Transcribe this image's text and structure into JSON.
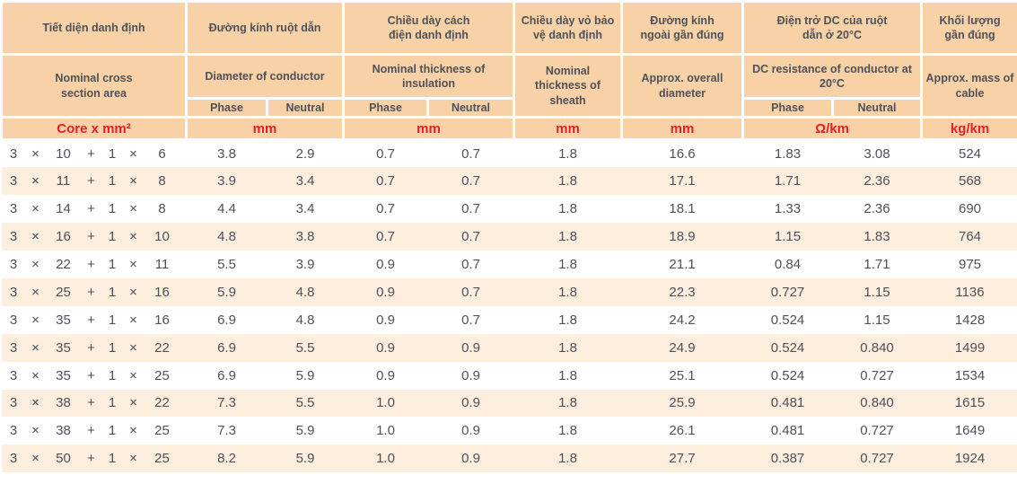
{
  "table": {
    "title_semantic": "4-core aluminium cable specification table",
    "colors": {
      "header_bg": "#f8d2a6",
      "stripe_bg": "#fdeedd",
      "unit_text": "#ea1d25",
      "body_text": "#4f5059"
    },
    "header": {
      "core": {
        "vn": "Tiết diện danh định",
        "en": "Nominal cross section area",
        "unit": "Core x mm²"
      },
      "diameter": {
        "vn": "Đường kính ruột dẫn",
        "en": "Diameter of conductor",
        "unit": "mm"
      },
      "insulation": {
        "vn": "Chiều dày cách điện danh định",
        "en": "Nominal thickness of insulation",
        "unit": "mm"
      },
      "sheath": {
        "vn": "Chiều dày vỏ bảo vệ danh định",
        "en": "Nominal thickness of sheath",
        "unit": "mm"
      },
      "overall_diameter": {
        "vn": "Đường kính ngoài gần đúng",
        "en": "Approx. overall diameter",
        "unit": "mm"
      },
      "dc_resistance": {
        "vn": "Điện trở DC của ruột dẫn ở 20°C",
        "en": "DC resistance of conductor at 20°C",
        "unit": "Ω/km"
      },
      "mass": {
        "vn": "Khối lượng gần đúng",
        "en": "Approx. mass of cable",
        "unit": "kg/km"
      }
    },
    "subheader": {
      "phase": "Phase",
      "neutral": "Neutral"
    },
    "columns": [
      "core",
      "diameter_phase",
      "diameter_neutral",
      "insulation_phase",
      "insulation_neutral",
      "sheath",
      "overall_diameter",
      "dc_phase",
      "dc_neutral",
      "mass"
    ],
    "rows": [
      [
        "3 × 10 + 1 × 6",
        "3.8",
        "2.9",
        "0.7",
        "0.7",
        "1.8",
        "16.6",
        "1.83",
        "3.08",
        "524"
      ],
      [
        "3 × 11 + 1 × 8",
        "3.9",
        "3.4",
        "0.7",
        "0.7",
        "1.8",
        "17.1",
        "1.71",
        "2.36",
        "568"
      ],
      [
        "3 × 14 + 1 × 8",
        "4.4",
        "3.4",
        "0.7",
        "0.7",
        "1.8",
        "18.1",
        "1.33",
        "2.36",
        "690"
      ],
      [
        "3 × 16 + 1 × 10",
        "4.8",
        "3.8",
        "0.7",
        "0.7",
        "1.8",
        "18.9",
        "1.15",
        "1.83",
        "764"
      ],
      [
        "3 × 22 + 1 × 11",
        "5.5",
        "3.9",
        "0.9",
        "0.7",
        "1.8",
        "21.1",
        "0.84",
        "1.71",
        "975"
      ],
      [
        "3 × 25 + 1 × 16",
        "5.9",
        "4.8",
        "0.9",
        "0.7",
        "1.8",
        "22.3",
        "0.727",
        "1.15",
        "1136"
      ],
      [
        "3 × 35 + 1 × 16",
        "6.9",
        "4.8",
        "0.9",
        "0.7",
        "1.8",
        "24.2",
        "0.524",
        "1.15",
        "1428"
      ],
      [
        "3 × 35 + 1 × 22",
        "6.9",
        "5.5",
        "0.9",
        "0.9",
        "1.8",
        "24.9",
        "0.524",
        "0.840",
        "1499"
      ],
      [
        "3 × 35 + 1 × 25",
        "6.9",
        "5.9",
        "0.9",
        "0.9",
        "1.8",
        "25.1",
        "0.524",
        "0.727",
        "1534"
      ],
      [
        "3 × 38 + 1 × 22",
        "7.3",
        "5.5",
        "1.0",
        "0.9",
        "1.8",
        "25.9",
        "0.481",
        "0.840",
        "1615"
      ],
      [
        "3 × 38 + 1 × 25",
        "7.3",
        "5.9",
        "1.0",
        "0.9",
        "1.8",
        "26.1",
        "0.481",
        "0.727",
        "1649"
      ],
      [
        "3 × 50 + 1 × 25",
        "8.2",
        "5.9",
        "1.0",
        "0.9",
        "1.8",
        "27.7",
        "0.387",
        "0.727",
        "1924"
      ]
    ]
  },
  "chart_data": {
    "type": "table",
    "title": "Cable specification table (Vietnamese/English)",
    "categories": [
      "3 × 10 + 1 × 6",
      "3 × 11 + 1 × 8",
      "3 × 14 + 1 × 8",
      "3 × 16 + 1 × 10",
      "3 × 22 + 1 × 11",
      "3 × 25 + 1 × 16",
      "3 × 35 + 1 × 16",
      "3 × 35 + 1 × 22",
      "3 × 35 + 1 × 25",
      "3 × 38 + 1 × 22",
      "3 × 38 + 1 × 25",
      "3 × 50 + 1 × 25"
    ],
    "series": [
      {
        "name": "Diameter of conductor Phase (mm)",
        "values": [
          3.8,
          3.9,
          4.4,
          4.8,
          5.5,
          5.9,
          6.9,
          6.9,
          6.9,
          7.3,
          7.3,
          8.2
        ]
      },
      {
        "name": "Diameter of conductor Neutral (mm)",
        "values": [
          2.9,
          3.4,
          3.4,
          3.8,
          3.9,
          4.8,
          4.8,
          5.5,
          5.9,
          5.5,
          5.9,
          5.9
        ]
      },
      {
        "name": "Insulation thickness Phase (mm)",
        "values": [
          0.7,
          0.7,
          0.7,
          0.7,
          0.9,
          0.9,
          0.9,
          0.9,
          0.9,
          1.0,
          1.0,
          1.0
        ]
      },
      {
        "name": "Insulation thickness Neutral (mm)",
        "values": [
          0.7,
          0.7,
          0.7,
          0.7,
          0.7,
          0.7,
          0.7,
          0.9,
          0.9,
          0.9,
          0.9,
          0.9
        ]
      },
      {
        "name": "Sheath thickness (mm)",
        "values": [
          1.8,
          1.8,
          1.8,
          1.8,
          1.8,
          1.8,
          1.8,
          1.8,
          1.8,
          1.8,
          1.8,
          1.8
        ]
      },
      {
        "name": "Approx. overall diameter (mm)",
        "values": [
          16.6,
          17.1,
          18.1,
          18.9,
          21.1,
          22.3,
          24.2,
          24.9,
          25.1,
          25.9,
          26.1,
          27.7
        ]
      },
      {
        "name": "DC resistance Phase (Ω/km)",
        "values": [
          1.83,
          1.71,
          1.33,
          1.15,
          0.84,
          0.727,
          0.524,
          0.524,
          0.524,
          0.481,
          0.481,
          0.387
        ]
      },
      {
        "name": "DC resistance Neutral (Ω/km)",
        "values": [
          3.08,
          2.36,
          2.36,
          1.83,
          1.71,
          1.15,
          1.15,
          0.84,
          0.727,
          0.84,
          0.727,
          0.727
        ]
      },
      {
        "name": "Approx. mass of cable (kg/km)",
        "values": [
          524,
          568,
          690,
          764,
          975,
          1136,
          1428,
          1499,
          1534,
          1615,
          1649,
          1924
        ]
      }
    ]
  }
}
